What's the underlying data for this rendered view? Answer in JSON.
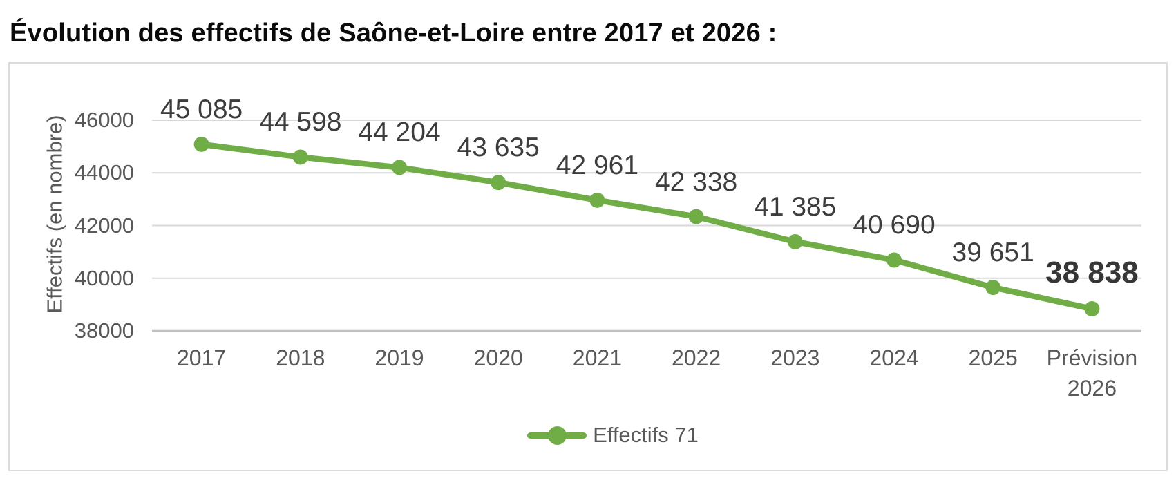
{
  "title": "Évolution des effectifs de Saône-et-Loire entre 2017 et 2026 :",
  "colors": {
    "series": "#70AD47",
    "gridline": "#D9D9D9",
    "axis_line": "#BFBFBF",
    "axis_text": "#595959",
    "data_label_text": "#3D3D3D",
    "title_text": "#0A0A0A",
    "chart_border": "#DCDCDC"
  },
  "chart_data": {
    "type": "line",
    "title": "",
    "categories": [
      "2017",
      "2018",
      "2019",
      "2020",
      "2021",
      "2022",
      "2023",
      "2024",
      "2025",
      "Prévision\n2026"
    ],
    "series": [
      {
        "name": "Effectifs 71",
        "values": [
          45085,
          44598,
          44204,
          43635,
          42961,
          42338,
          41385,
          40690,
          39651,
          38838
        ],
        "color": "#70AD47"
      }
    ],
    "data_labels": [
      "45 085",
      "44 598",
      "44 204",
      "43 635",
      "42 961",
      "42 338",
      "41 385",
      "40 690",
      "39 651",
      "38 838"
    ],
    "last_label_bold": true,
    "xlabel": "",
    "ylabel": "Effectifs (en nombre)",
    "yticks": [
      {
        "label": "46000",
        "value": 46000
      },
      {
        "label": "44000",
        "value": 44000
      },
      {
        "label": "42000",
        "value": 42000
      },
      {
        "label": "40000",
        "value": 40000
      },
      {
        "label": "38000",
        "value": 38000
      }
    ],
    "ylim": [
      38000,
      46000
    ],
    "grid": "horizontal",
    "legend_position": "bottom",
    "legend_label": "Effectifs 71"
  }
}
